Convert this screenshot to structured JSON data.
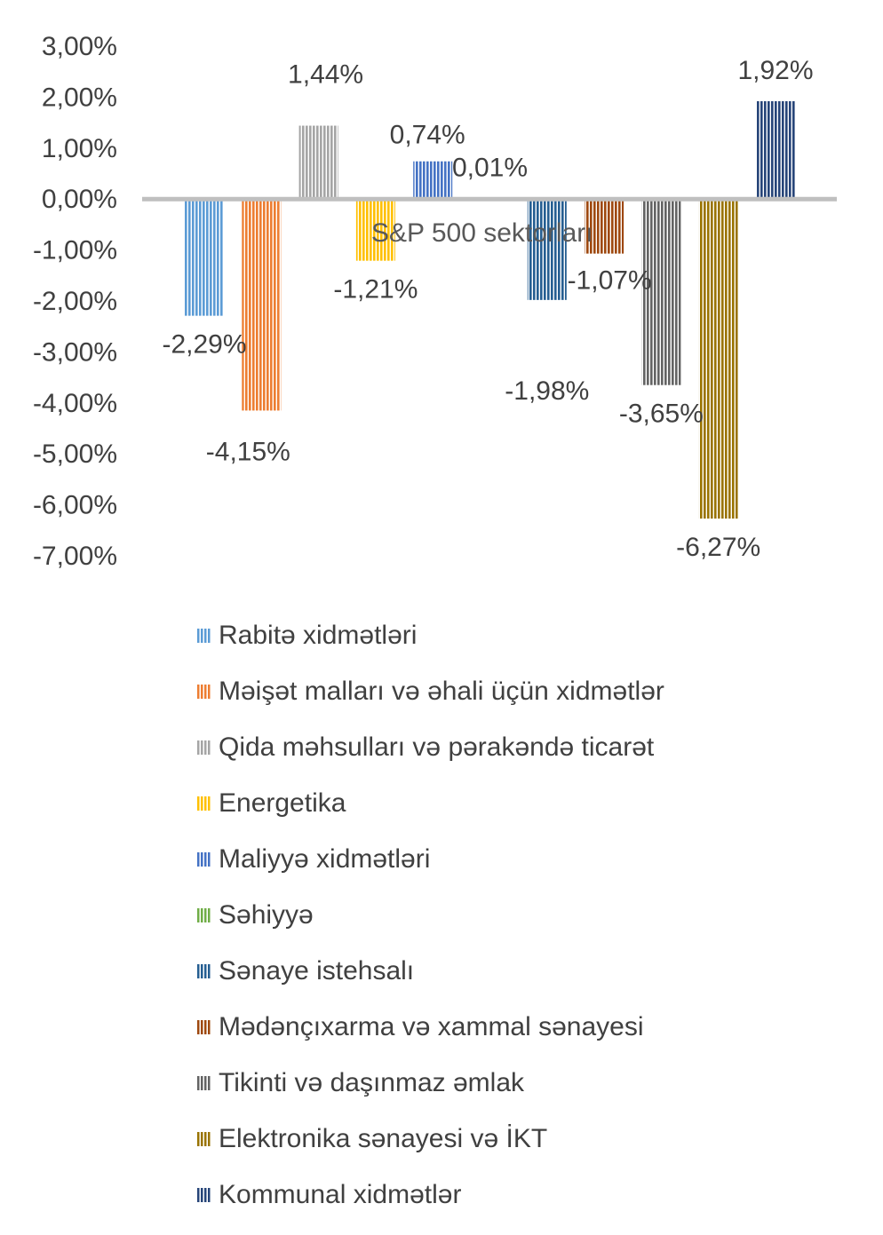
{
  "chart_data": {
    "type": "bar",
    "xlabel": "S&P 500 sektorları",
    "ylim": [
      -7,
      3
    ],
    "yticks": [
      "3,00%",
      "2,00%",
      "1,00%",
      "0,00%",
      "-1,00%",
      "-2,00%",
      "-3,00%",
      "-4,00%",
      "-5,00%",
      "-6,00%",
      "-7,00%"
    ],
    "ytick_values": [
      3,
      2,
      1,
      0,
      -1,
      -2,
      -3,
      -4,
      -5,
      -6,
      -7
    ],
    "grid": false,
    "legend_position": "bottom",
    "series": [
      {
        "name": "Rabitə xidmətləri",
        "value": -2.29,
        "label": "-2,29%",
        "color": "#5B9BD5"
      },
      {
        "name": "Məişət malları və əhali üçün xidmətlər",
        "value": -4.15,
        "label": "-4,15%",
        "color": "#ED7D31"
      },
      {
        "name": "Qida məhsulları və pərakəndə ticarət",
        "value": 1.44,
        "label": "1,44%",
        "color": "#A5A5A5"
      },
      {
        "name": "Energetika",
        "value": -1.21,
        "label": "-1,21%",
        "color": "#FFC000"
      },
      {
        "name": "Maliyyə xidmətləri",
        "value": 0.74,
        "label": "0,74%",
        "color": "#4472C4"
      },
      {
        "name": "Səhiyyə",
        "value": 0.01,
        "label": "0,01%",
        "color": "#70AD47"
      },
      {
        "name": "Sənaye istehsalı",
        "value": -1.98,
        "label": "-1,98%",
        "color": "#255E91"
      },
      {
        "name": "Mədənçıxarma və xammal sənayesi",
        "value": -1.07,
        "label": "-1,07%",
        "color": "#9E480E"
      },
      {
        "name": "Tikinti və daşınmaz əmlak",
        "value": -3.65,
        "label": "-3,65%",
        "color": "#636363"
      },
      {
        "name": "Elektronika sənayesi və İKT",
        "value": -6.27,
        "label": "-6,27%",
        "color": "#997300"
      },
      {
        "name": "Kommunal xidmətlər",
        "value": 1.92,
        "label": "1,92%",
        "color": "#264478"
      }
    ]
  }
}
